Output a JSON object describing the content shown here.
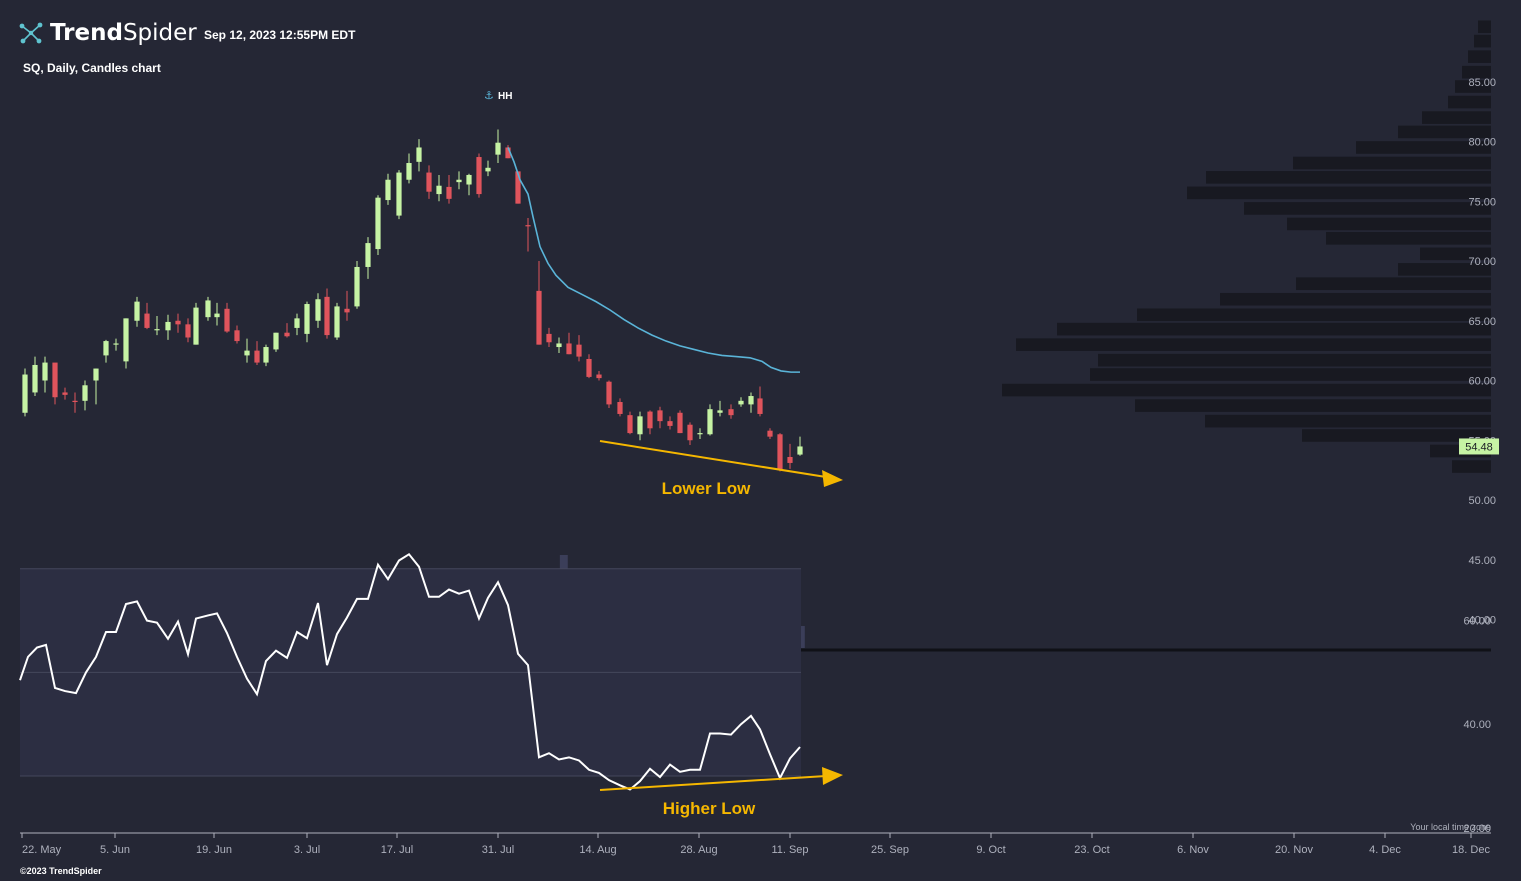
{
  "header": {
    "brand_bold": "Trend",
    "brand_light": "Spider",
    "timestamp": "Sep 12, 2023 12:55PM EDT",
    "subtitle": "SQ, Daily, Candles chart",
    "copyright": "©2023 TrendSpider",
    "timezone_note": "Your local time zone"
  },
  "colors": {
    "background": "#252735",
    "up": "#c6f3a4",
    "down": "#e0545c",
    "ma": "#5ab4d8",
    "annotation": "#f5b700",
    "volume": "#3b3e59",
    "volume_profile": "#181921",
    "rsi_band": "#2c2e42",
    "price_label_bg": "#c6f3a4"
  },
  "chart_data": [
    {
      "type": "candlestick",
      "name": "SQ",
      "ylim": [
        36,
        89
      ],
      "y_ticks": [
        "85.00",
        "80.00",
        "75.00",
        "70.00",
        "65.00",
        "60.00",
        "55.00",
        "50.00",
        "45.00",
        "40.00"
      ],
      "y_tick_values": [
        85,
        80,
        75,
        70,
        65,
        60,
        55,
        50,
        45,
        40
      ],
      "x_ticks": [
        "22. May",
        "5. Jun",
        "19. Jun",
        "3. Jul",
        "17. Jul",
        "31. Jul",
        "14. Aug",
        "28. Aug",
        "11. Sep",
        "25. Sep",
        "9. Oct",
        "23. Oct",
        "6. Nov",
        "20. Nov",
        "4. Dec",
        "18. Dec"
      ],
      "x_tick_dates": [
        "2023-05-22",
        "2023-06-05",
        "2023-06-19",
        "2023-07-03",
        "2023-07-17",
        "2023-07-31",
        "2023-08-14",
        "2023-08-28",
        "2023-09-11",
        "2023-09-25",
        "2023-10-09",
        "2023-10-23",
        "2023-11-06",
        "2023-11-20",
        "2023-12-04",
        "2023-12-18"
      ],
      "last_price": "54.48",
      "ohlc": [
        [
          "2023-05-19",
          57.5,
          60.5,
          57.0,
          60.0
        ],
        [
          "2023-05-22",
          60.0,
          61.8,
          59.5,
          59.0
        ],
        [
          "2023-05-23",
          59.0,
          61.2,
          58.5,
          61.0
        ],
        [
          "2023-05-24",
          61.0,
          61.5,
          58.0,
          58.6
        ],
        [
          "2023-05-25",
          59.0,
          59.5,
          58.0,
          58.3
        ],
        [
          "2023-05-26",
          58.5,
          59.0,
          57.3,
          58.0
        ],
        [
          "2023-05-30",
          58.5,
          60.0,
          57.5,
          59.5
        ],
        [
          "2023-05-31",
          58.0,
          59.5,
          57.8,
          58.2
        ],
        [
          "2023-06-01",
          58.2,
          60.0,
          58.0,
          59.4
        ],
        [
          "2023-06-02",
          59.0,
          61.3,
          58.8,
          61.0
        ],
        [
          "2023-06-05",
          61.0,
          62.5,
          60.5,
          62.2
        ],
        [
          "2023-06-06",
          62.2,
          63.8,
          61.8,
          63.3
        ],
        [
          "2023-06-07",
          63.0,
          63.5,
          62.5,
          63.0
        ],
        [
          "2023-06-08",
          62.5,
          65.2,
          60.8,
          65.0
        ],
        [
          "2023-06-09",
          65.5,
          67.0,
          64.5,
          66.5
        ],
        [
          "2023-06-12",
          65.5,
          66.5,
          64.0,
          64.2
        ],
        [
          "2023-06-13",
          64.8,
          65.5,
          64.0,
          64.5
        ],
        [
          "2023-06-14",
          64.5,
          65.0,
          63.5,
          63.9
        ],
        [
          "2023-06-15",
          64.0,
          65.5,
          63.5,
          65.0
        ],
        [
          "2023-06-16",
          64.5,
          65.2,
          64.0,
          64.8
        ],
        [
          "2023-06-20",
          64.0,
          65.0,
          62.5,
          63.5
        ],
        [
          "2023-06-21",
          63.0,
          66.5,
          62.8,
          66.0
        ],
        [
          "2023-06-22",
          66.0,
          67.0,
          65.0,
          65.4
        ],
        [
          "2023-06-23",
          65.5,
          66.5,
          64.5,
          66.5
        ],
        [
          "2023-06-26",
          65.6,
          66.8,
          63.5,
          63.8
        ],
        [
          "2023-06-27",
          64.0,
          64.5,
          63.2,
          63.3
        ],
        [
          "2023-06-28",
          63.0,
          63.6,
          61.8,
          61.9
        ],
        [
          "2023-06-29",
          62.0,
          63.0,
          61.5,
          62.5
        ],
        [
          "2023-06-30",
          62.8,
          63.0,
          61.4,
          61.6
        ],
        [
          "2023-07-03",
          62.0,
          63.6,
          61.8,
          63.4
        ],
        [
          "2023-07-05",
          63.0,
          64.5,
          62.8,
          64.4
        ],
        [
          "2023-07-06",
          64.2,
          64.8,
          63.3,
          63.7
        ],
        [
          "2023-07-07",
          63.5,
          64.2,
          63.2,
          64.0
        ],
        [
          "2023-07-10",
          64.5,
          66.2,
          64.0,
          66.0
        ],
        [
          "2023-07-11",
          64.6,
          66.5,
          64.5,
          66.0
        ],
        [
          "2023-07-12",
          66.0,
          67.5,
          65.5,
          67.2
        ],
        [
          "2023-07-13",
          67.0,
          68.5,
          64.5,
          65.0
        ],
        [
          "2023-07-14",
          66.5,
          66.8,
          63.5,
          63.6
        ],
        [
          "2023-07-17",
          64.0,
          67.0,
          63.5,
          66.5
        ],
        [
          "2023-07-18",
          67.5,
          69.0,
          66.0,
          67.0
        ],
        [
          "2023-07-19",
          67.0,
          70.0,
          66.5,
          69.5
        ],
        [
          "2023-07-20",
          70.5,
          72.5,
          69.5,
          71.5
        ],
        [
          "2023-07-21",
          71.5,
          73.5,
          70.0,
          72.3
        ],
        [
          "2023-07-24",
          71.5,
          75.0,
          71.0,
          74.8
        ],
        [
          "2023-07-25",
          74.8,
          76.5,
          74.5,
          76.0
        ],
        [
          "2023-07-26",
          76.5,
          78.0,
          75.5,
          77.0
        ],
        [
          "2023-07-27",
          74.0,
          77.5,
          73.5,
          77.0
        ],
        [
          "2023-07-28",
          77.5,
          79.5,
          77.0,
          78.7
        ],
        [
          "2023-07-31",
          77.0,
          79.0,
          76.5,
          78.2
        ],
        [
          "2023-08-01",
          77.5,
          80.0,
          77.0,
          79.5
        ],
        [
          "2023-08-02",
          77.0,
          77.5,
          75.5,
          75.8
        ],
        [
          "2023-08-03",
          76.5,
          77.0,
          75.3,
          75.5
        ],
        [
          "2023-08-04",
          75.8,
          77.0,
          75.3,
          75.4
        ],
        [
          "2023-08-07",
          75.0,
          77.0,
          74.5,
          76.3
        ],
        [
          "2023-08-08",
          76.5,
          77.0,
          75.0,
          76.2
        ],
        [
          "2023-08-09",
          75.5,
          76.8,
          75.0,
          76.5
        ],
        [
          "2023-08-10",
          75.7,
          77.6,
          75.2,
          77.2
        ],
        [
          "2023-08-11",
          77.0,
          78.0,
          75.0,
          75.3
        ],
        [
          "2023-08-14",
          77.5,
          78.5,
          77.0,
          77.7
        ],
        [
          "2023-08-15",
          79.0,
          81.0,
          78.0,
          80.2
        ],
        [
          "2023-08-16",
          79.0,
          79.5,
          77.5,
          77.9
        ]
      ],
      "volume_relative": []
    }
  ],
  "annotations": {
    "hh_label": "HH",
    "lower_low": "Lower Low",
    "higher_low": "Higher Low"
  },
  "rsi": {
    "y_ticks": [
      "60.00",
      "40.00",
      "20.00"
    ],
    "y_tick_values": [
      60,
      40,
      20
    ]
  }
}
